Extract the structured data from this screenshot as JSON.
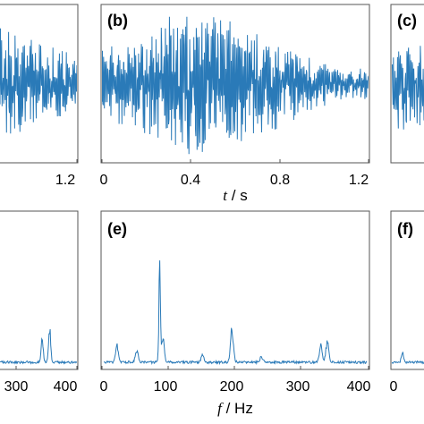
{
  "panels": {
    "a": {
      "label": "",
      "xticks": [
        "1.2"
      ]
    },
    "b": {
      "label": "(b)",
      "xticks": [
        "0",
        "0.4",
        "0.8",
        "1.2"
      ]
    },
    "c": {
      "label": "(c)"
    },
    "d": {
      "label": "",
      "xticks": [
        "300",
        "400"
      ]
    },
    "e": {
      "label": "(e)",
      "xticks": [
        "0",
        "100",
        "200",
        "300",
        "400"
      ]
    },
    "f": {
      "label": "(f)",
      "xticks": [
        "0"
      ]
    }
  },
  "axis_labels": {
    "time": {
      "var": "t",
      "unit": " / s"
    },
    "freq": {
      "var": "f",
      "unit": " / Hz"
    }
  },
  "colors": {
    "signal": "#2a7ab8",
    "frame": "#555555",
    "text": "#000000"
  },
  "chart_data": [
    {
      "panel": "b",
      "type": "line",
      "xlabel": "t / s",
      "xlim": [
        0,
        1.2
      ],
      "description_of_series": "vibration time signal",
      "envelope_t": [
        0,
        0.1,
        0.2,
        0.3,
        0.4,
        0.5,
        0.6,
        0.7,
        0.8,
        0.9,
        1.0,
        1.1,
        1.2
      ],
      "envelope_amp": [
        0.45,
        0.55,
        0.6,
        0.85,
        0.95,
        0.9,
        0.8,
        0.7,
        0.55,
        0.4,
        0.3,
        0.22,
        0.2
      ]
    },
    {
      "panel": "e",
      "type": "line",
      "xlabel": "f / Hz",
      "xlim": [
        0,
        400
      ],
      "peaks_f": [
        20,
        50,
        85,
        90,
        150,
        195,
        240,
        330,
        340
      ],
      "peaks_amp": [
        0.18,
        0.12,
        1.0,
        0.28,
        0.08,
        0.36,
        0.06,
        0.18,
        0.22
      ]
    },
    {
      "panel": "a",
      "type": "line",
      "xlim_visible_end": 1.2
    },
    {
      "panel": "d",
      "type": "line",
      "xlim": [
        0,
        400
      ],
      "peaks_f": [
        330,
        345
      ],
      "peaks_amp": [
        0.25,
        0.35
      ]
    }
  ]
}
